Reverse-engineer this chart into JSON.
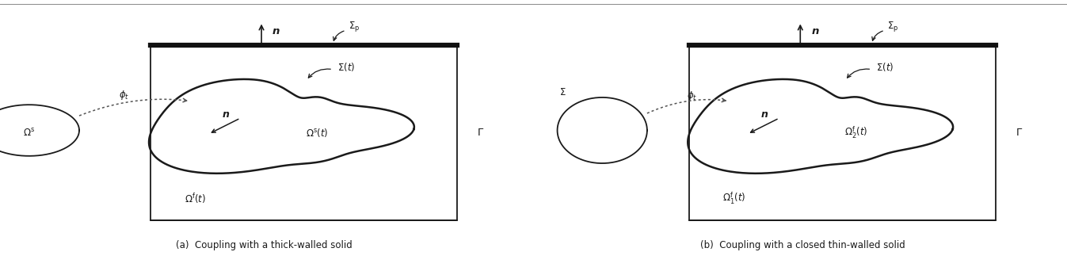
{
  "fig_width": 13.47,
  "fig_height": 3.42,
  "bg_color": "#ffffff",
  "caption_a": "(a)  Coupling with a thick-walled solid",
  "caption_b": "(b)  Coupling with a closed thin-walled solid",
  "line_color": "#1a1a1a",
  "top_bar_color": "#111111",
  "gray_line": "#888888",
  "dot_color": "#555555"
}
